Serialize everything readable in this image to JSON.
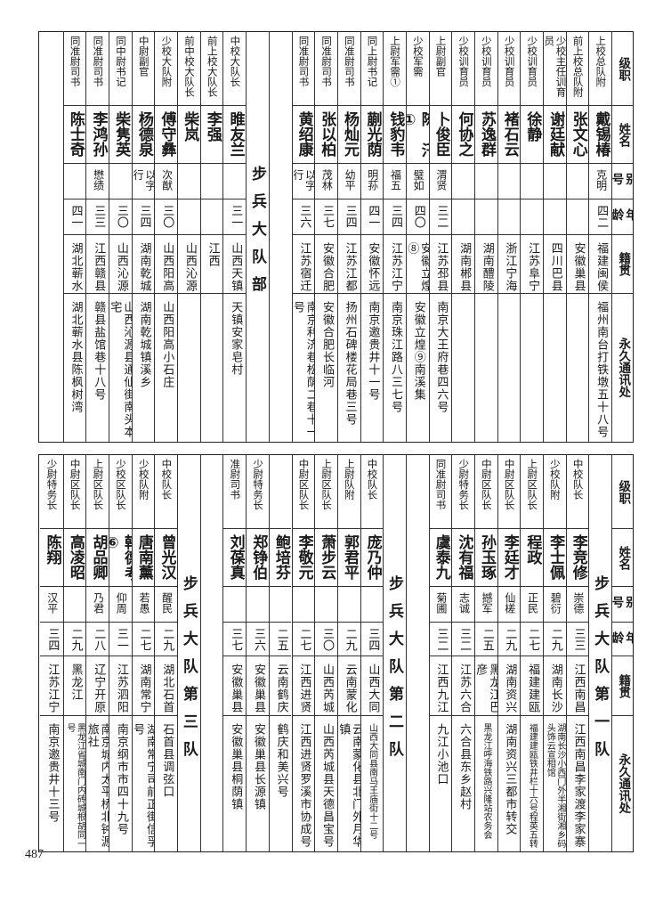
{
  "page_number": "487",
  "header": {
    "rank": "级职",
    "name": "姓名",
    "alias": "别号",
    "age": "年龄",
    "native": "籍贯",
    "address": "永久通讯处"
  },
  "top": {
    "columns": [
      {
        "kind": "person",
        "rank": "上校总队附",
        "name": "戴锡椿",
        "alias": "克明",
        "age": "四二",
        "native": "福建闽侯",
        "address": "福州南台打铁墩五十八号"
      },
      {
        "kind": "person",
        "rank": "前上校总队附",
        "name": "张文心",
        "alias": "",
        "age": "",
        "native": "安徽巢县",
        "address": ""
      },
      {
        "kind": "person",
        "rank": "少校主任训育员",
        "name": "谢廷献",
        "alias": "",
        "age": "",
        "native": "四川巴县",
        "address": ""
      },
      {
        "kind": "person",
        "rank": "少校训育员",
        "name": "徐静",
        "alias": "",
        "age": "",
        "native": "江苏阜宁",
        "address": ""
      },
      {
        "kind": "person",
        "rank": "少校训育员",
        "name": "褚石云",
        "alias": "",
        "age": "",
        "native": "浙江宁海",
        "address": ""
      },
      {
        "kind": "person",
        "rank": "少校训育员",
        "name": "苏逸群",
        "alias": "",
        "age": "",
        "native": "湖南醴陵",
        "address": ""
      },
      {
        "kind": "person",
        "rank": "少校训育员",
        "name": "何协之",
        "alias": "",
        "age": "",
        "native": "湖南郴县",
        "address": ""
      },
      {
        "kind": "person",
        "rank": "上尉副官",
        "name": "卜俊臣",
        "alias": "渭贤",
        "age": "三二",
        "native": "江苏邳县",
        "address": "南京大王府巷四六号"
      },
      {
        "kind": "person",
        "rank": "少校军需",
        "name": "陈汛①",
        "alias": "璧如",
        "age": "四〇",
        "native": "安徽立煌⑧",
        "address": "安徽立煌⑨南溪集"
      },
      {
        "kind": "person",
        "rank": "上尉军需①",
        "name": "钱豹韦",
        "alias": "福五",
        "age": "三四",
        "native": "江苏江宁",
        "address": "南京珠江路八三七号"
      },
      {
        "kind": "person",
        "rank": "同上尉书记",
        "name": "蒯光荫",
        "alias": "明荪",
        "age": "四一",
        "native": "安徽怀远",
        "address": "南京邀贵井十一号"
      },
      {
        "kind": "person",
        "rank": "同准尉司书",
        "name": "杨灿元",
        "alias": "幼平",
        "age": "三四",
        "native": "江苏江都",
        "address": "扬州石碑楼花局巷三号"
      },
      {
        "kind": "person",
        "rank": "同准尉司书",
        "name": "张以柏",
        "alias": "茂林",
        "age": "三七",
        "native": "安徽合肥",
        "address": "安徽合肥长临河"
      },
      {
        "kind": "person",
        "rank": "同准尉司书",
        "name": "黄绍康",
        "alias": "以字行",
        "age": "三六",
        "native": "江苏宿迁",
        "address": "南京利济巷松荫二巷十一号"
      },
      {
        "kind": "blank"
      },
      {
        "kind": "title",
        "text": "步兵大队部"
      },
      {
        "kind": "person",
        "rank": "中校大队长",
        "name": "睢友兰",
        "alias": "",
        "age": "三一",
        "native": "山西天镇",
        "address": "天镇安家皂村"
      },
      {
        "kind": "person",
        "rank": "前上校大队长",
        "name": "李强",
        "alias": "",
        "age": "",
        "native": "江西",
        "address": ""
      },
      {
        "kind": "person",
        "rank": "前中校大队长",
        "name": "柴岚",
        "alias": "",
        "age": "",
        "native": "山西沁源",
        "address": ""
      },
      {
        "kind": "person",
        "rank": "少校大队附",
        "name": "傅守彝",
        "alias": "次猷",
        "age": "三〇",
        "native": "山西阳高",
        "address": "山西阳高小石庄"
      },
      {
        "kind": "person",
        "rank": "中尉副官",
        "name": "杨德泉",
        "alias": "以字行",
        "age": "三四",
        "native": "湖南乾城",
        "address": "湖南乾城镇溪乡"
      },
      {
        "kind": "person",
        "rank": "同中尉书记",
        "name": "柴隽英",
        "alias": "",
        "age": "三〇",
        "native": "山西沁源",
        "address": "山西沁源县通仙街南头本宅"
      },
      {
        "kind": "person",
        "rank": "同准尉司书",
        "name": "李鸿孙",
        "alias": "懋绩",
        "age": "三三",
        "native": "江西赣县",
        "address": "赣县盐馆巷十八号"
      },
      {
        "kind": "person",
        "rank": "同准尉司书",
        "name": "陈士奇",
        "alias": "",
        "age": "四一",
        "native": "湖北蕲水",
        "address": "湖北蕲水县陈枫树湾"
      },
      {
        "kind": "blank"
      }
    ]
  },
  "bottom": {
    "columns": [
      {
        "kind": "title",
        "text": "步兵大队第一队"
      },
      {
        "kind": "person",
        "rank": "中校队长",
        "name": "李竞修",
        "alias": "崇德",
        "age": "三三",
        "native": "江西南昌",
        "address": "江西南昌李家渡李家寨"
      },
      {
        "kind": "person",
        "rank": "少校队附",
        "name": "李士佩",
        "alias": "碧衍",
        "age": "二九",
        "native": "湖南长沙",
        "address": "湖南长沙小西门外半湘街湘乡码头饰云宣相馆"
      },
      {
        "kind": "person",
        "rank": "上尉区队长",
        "name": "程政",
        "alias": "正民",
        "age": "二七",
        "native": "福建建瓯",
        "address": "福建建瓯铁井栏十六号程英五转"
      },
      {
        "kind": "person",
        "rank": "中尉区队长",
        "name": "李廷才",
        "alias": "仙槎",
        "age": "二九",
        "native": "湖南资兴",
        "address": "湖南资兴三都市转交"
      },
      {
        "kind": "person",
        "rank": "中尉区队长",
        "name": "孙玉琢",
        "alias": "撼军",
        "age": "二五",
        "native": "黑龙江巴彦",
        "address": "黑龙江呼海铁路兴隆站农务会"
      },
      {
        "kind": "person",
        "rank": "少尉特务长",
        "name": "沈有福",
        "alias": "志诚",
        "age": "三二",
        "native": "江苏六合",
        "address": "六合县东乡赵村"
      },
      {
        "kind": "person",
        "rank": "同准尉司书",
        "name": "虞泰九",
        "alias": "菊圃",
        "age": "三二",
        "native": "江西九江",
        "address": "九江小池口"
      },
      {
        "kind": "blank"
      },
      {
        "kind": "title",
        "text": "步兵大队第二队"
      },
      {
        "kind": "person",
        "rank": "中校队长",
        "name": "庞乃仲",
        "alias": "",
        "age": "三四",
        "native": "山西大同",
        "address": "山西大同县南马王庙街十二号"
      },
      {
        "kind": "person",
        "rank": "上尉队附",
        "name": "郭君平",
        "alias": "",
        "age": "二九",
        "native": "云南蒙化",
        "address": "云南蒙化县北门外月华镇"
      },
      {
        "kind": "person",
        "rank": "上尉区队长",
        "name": "萧步云",
        "alias": "",
        "age": "三〇",
        "native": "山西芮城",
        "address": "山西芮城县天德昌宝号"
      },
      {
        "kind": "person",
        "rank": "中尉区队长",
        "name": "李敬元",
        "alias": "",
        "age": "二七",
        "native": "江西进贤",
        "address": "江西进贤罗溪市协成号"
      },
      {
        "kind": "person",
        "rank": "",
        "name": "鲍培芬",
        "alias": "",
        "age": "二五",
        "native": "云南鹤庆",
        "address": "鹤庆和美兴号"
      },
      {
        "kind": "person",
        "rank": "少尉特务长",
        "name": "郑铮伯",
        "alias": "",
        "age": "三六",
        "native": "安徽巢县",
        "address": "安徽巢县长源镇"
      },
      {
        "kind": "person",
        "rank": "准尉司书",
        "name": "刘葆真",
        "alias": "",
        "age": "三七",
        "native": "安徽巢县",
        "address": "安徽巢县桐荫镇"
      },
      {
        "kind": "blank"
      },
      {
        "kind": "title",
        "text": "步兵大队第三队"
      },
      {
        "kind": "person",
        "rank": "中校队长",
        "name": "曾光汉",
        "alias": "醒民",
        "age": "二九",
        "native": "湖北石首",
        "address": "石首县调弦口"
      },
      {
        "kind": "person",
        "rank": "少校队附",
        "name": "唐南薰",
        "alias": "若愚",
        "age": "二七",
        "native": "湖南常宁",
        "address": "湖南常宁司前正街信孚号"
      },
      {
        "kind": "person",
        "rank": "少校区队长",
        "name": "韩德考⑥",
        "alias": "仰周",
        "age": "三一",
        "native": "江苏泗阳",
        "address": "南京纲市市四十九号"
      },
      {
        "kind": "person",
        "rank": "上尉区队长",
        "name": "胡品卿",
        "alias": "乃君",
        "age": "二八",
        "native": "辽宁开原",
        "address": "南京城内太平桥北钟源旅社"
      },
      {
        "kind": "person",
        "rank": "中尉区队长",
        "name": "高凌昭",
        "alias": "",
        "age": "二九",
        "native": "黑龙江",
        "address": "黑龙江省城南门内砖城根胡同一号"
      },
      {
        "kind": "person",
        "rank": "少尉特务长",
        "name": "陈翔",
        "alias": "汉平",
        "age": "三四",
        "native": "江苏江宁",
        "address": "南京邀贵井十三号"
      }
    ]
  }
}
